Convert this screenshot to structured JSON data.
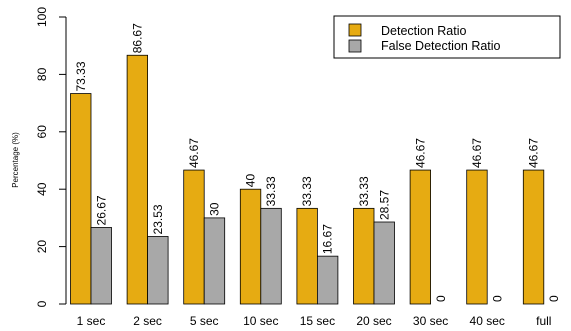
{
  "colors": {
    "detection": "#E6AB12",
    "false_detection": "#A8A8A8",
    "stroke": "#000000"
  },
  "chart_data": {
    "type": "bar",
    "ylabel": "Percentage (%)",
    "xlabel": "",
    "ylim": [
      0,
      100
    ],
    "yticks": [
      0,
      20,
      40,
      60,
      80,
      100
    ],
    "grid": false,
    "legend_position": "top-right",
    "categories": [
      "1 sec",
      "2 sec",
      "5 sec",
      "10 sec",
      "15 sec",
      "20 sec",
      "30 sec",
      "40 sec",
      "full"
    ],
    "series": [
      {
        "name": "Detection Ratio",
        "values": [
          73.33,
          86.67,
          46.67,
          40,
          33.33,
          33.33,
          46.67,
          46.67,
          46.67
        ],
        "labels": [
          "73.33",
          "86.67",
          "46.67",
          "40",
          "33.33",
          "33.33",
          "46.67",
          "46.67",
          "46.67"
        ]
      },
      {
        "name": "False Detection Ratio",
        "values": [
          26.67,
          23.53,
          30,
          33.33,
          16.67,
          28.57,
          0,
          0,
          0
        ],
        "labels": [
          "26.67",
          "23.53",
          "30",
          "33.33",
          "16.67",
          "28.57",
          "0",
          "0",
          "0"
        ]
      }
    ]
  }
}
